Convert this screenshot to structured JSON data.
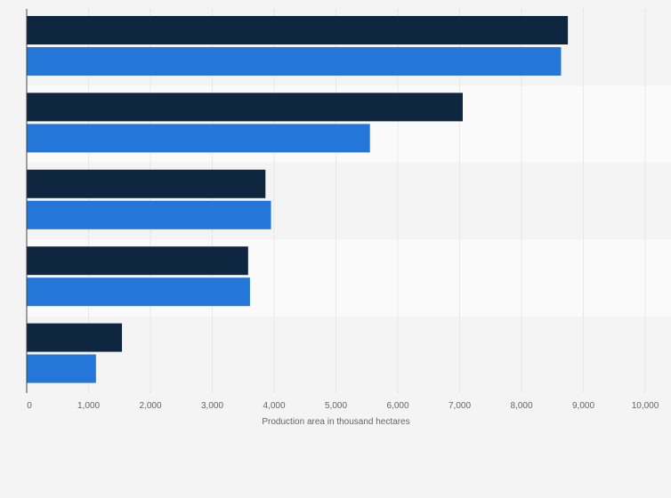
{
  "chart_data": {
    "type": "bar",
    "orientation": "horizontal",
    "title": "",
    "xlabel": "Production area in thousand hectares",
    "ylabel": "",
    "xlim": [
      0,
      10000
    ],
    "x_ticks": [
      0,
      1000,
      2000,
      3000,
      4000,
      5000,
      6000,
      7000,
      8000,
      9000,
      10000
    ],
    "x_tick_labels": [
      "0",
      "1,000",
      "2,000",
      "3,000",
      "4,000",
      "5,000",
      "6,000",
      "7,000",
      "8,000",
      "9,000",
      "10,000"
    ],
    "grid": true,
    "legend": "none",
    "category_count": 5,
    "series": [
      {
        "values": [
          8750,
          7050,
          3860,
          3580,
          1540
        ],
        "color": "#0f2640"
      },
      {
        "values": [
          8640,
          5550,
          3950,
          3610,
          1120
        ],
        "color": "#2476d9"
      }
    ],
    "band_colors": [
      "#f4f4f4",
      "#fafafa"
    ],
    "gridline_color": "#d9d9d9",
    "axis_color": "#444444"
  }
}
